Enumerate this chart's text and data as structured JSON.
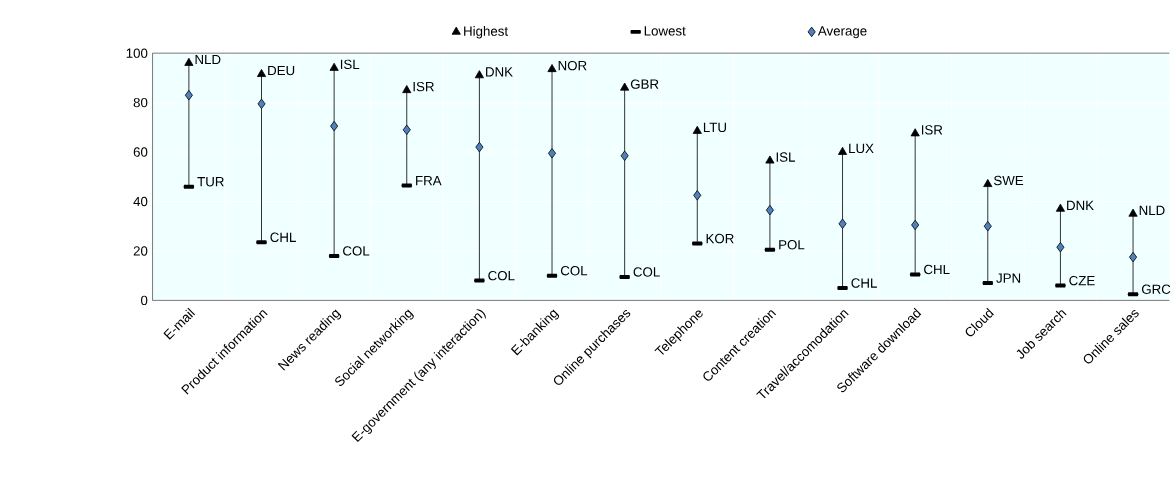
{
  "chart_data": {
    "type": "scatter",
    "categories": [
      "E-mail",
      "Product information",
      "News reading",
      "Social networking",
      "E-government (any interaction)",
      "E-banking",
      "Online purchases",
      "Telephone",
      "Content creation",
      "Travel/accomodation",
      "Software download",
      "Cloud",
      "Job search",
      "Online sales"
    ],
    "series": [
      {
        "name": "Highest",
        "color": "#000000",
        "marker": "triangle",
        "values": [
          96,
          91.5,
          94,
          85,
          91,
          93.5,
          86,
          68.5,
          56.5,
          60,
          67.5,
          47,
          37,
          35
        ]
      },
      {
        "name": "Lowest",
        "color": "#000000",
        "values": [
          46,
          23.5,
          18,
          46.5,
          8,
          10,
          9.5,
          23,
          20.5,
          5,
          10.5,
          7,
          6,
          2.5
        ]
      },
      {
        "name": "Average",
        "color": "#4f81bd",
        "marker": "diamond",
        "values": [
          83,
          79.5,
          70.5,
          69,
          62,
          59.5,
          58.5,
          42.5,
          36.5,
          31,
          30.5,
          30,
          21.5,
          17.5
        ]
      }
    ],
    "annotations": [
      {
        "text": "NLD",
        "x": "E-mail",
        "y": 96
      },
      {
        "text": "TUR",
        "x": "E-mail",
        "y": 46
      },
      {
        "text": "DEU",
        "x": "Product information",
        "y": 91.5
      },
      {
        "text": "CHL",
        "x": "Product information",
        "y": 23.5
      },
      {
        "text": "ISL",
        "x": "News reading",
        "y": 94
      },
      {
        "text": "COL",
        "x": "News reading",
        "y": 18
      },
      {
        "text": "ISR",
        "x": "Social networking",
        "y": 85
      },
      {
        "text": "FRA",
        "x": "Social networking",
        "y": 46.5
      },
      {
        "text": "DNK",
        "x": "E-government (any interaction)",
        "y": 91
      },
      {
        "text": "COL",
        "x": "E-government (any interaction)",
        "y": 8
      },
      {
        "text": "NOR",
        "x": "E-banking",
        "y": 93.5
      },
      {
        "text": "COL",
        "x": "E-banking",
        "y": 10
      },
      {
        "text": "GBR",
        "x": "Online purchases",
        "y": 86
      },
      {
        "text": "COL",
        "x": "Online purchases",
        "y": 9.5
      },
      {
        "text": "LTU",
        "x": "Telephone",
        "y": 68.5
      },
      {
        "text": "KOR",
        "x": "Telephone",
        "y": 23
      },
      {
        "text": "ISL",
        "x": "Content creation",
        "y": 56.5
      },
      {
        "text": "POL",
        "x": "Content creation",
        "y": 20.5
      },
      {
        "text": "LUX",
        "x": "Travel/accomodation",
        "y": 60
      },
      {
        "text": "CHL",
        "x": "Travel/accomodation",
        "y": 5
      },
      {
        "text": "ISR",
        "x": "Software download",
        "y": 67.5
      },
      {
        "text": "CHL",
        "x": "Software download",
        "y": 10.5
      },
      {
        "text": "SWE",
        "x": "Cloud",
        "y": 47
      },
      {
        "text": "JPN",
        "x": "Cloud",
        "y": 7
      },
      {
        "text": "DNK",
        "x": "Job search",
        "y": 37
      },
      {
        "text": "CZE",
        "x": "Job search",
        "y": 6
      },
      {
        "text": "NLD",
        "x": "Online sales",
        "y": 35
      },
      {
        "text": "GRC",
        "x": "Online sales",
        "y": 2.5
      }
    ],
    "ylim": [
      0,
      100
    ],
    "yticks": [
      0,
      20,
      40,
      60,
      80,
      100
    ],
    "grid": true,
    "legend": "top"
  }
}
